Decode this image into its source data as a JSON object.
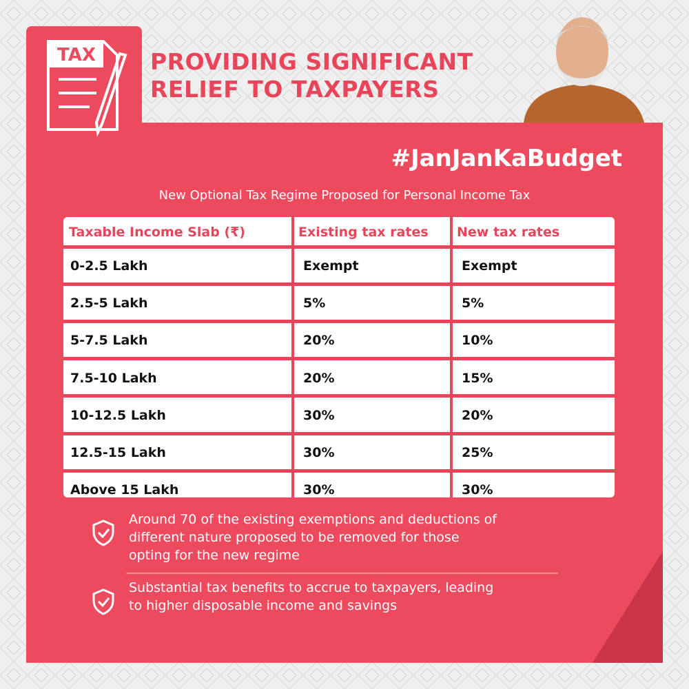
{
  "header": {
    "icon_label": "TAX",
    "title_lines": [
      "PROVIDING SIGNIFICANT",
      "RELIEF TO TAXPAYERS"
    ],
    "hashtag": "#JanJanKaBudget",
    "subtitle": "New Optional Tax Regime Proposed for Personal Income Tax"
  },
  "table": {
    "columns": [
      "Taxable Income Slab (₹)",
      "Existing tax rates",
      "New tax rates"
    ],
    "rows": [
      [
        "0-2.5 Lakh",
        "Exempt",
        "Exempt"
      ],
      [
        "2.5-5 Lakh",
        "5%",
        "5%"
      ],
      [
        "5-7.5 Lakh",
        "20%",
        "10%"
      ],
      [
        "7.5-10 Lakh",
        "20%",
        "15%"
      ],
      [
        "10-12.5 Lakh",
        "30%",
        "20%"
      ],
      [
        "12.5-15 Lakh",
        "30%",
        "25%"
      ],
      [
        "Above 15 Lakh",
        "30%",
        "30%"
      ]
    ]
  },
  "notes": [
    [
      "Around 70 of the existing exemptions and deductions of",
      "different nature proposed to be removed for those",
      "opting for the new regime"
    ],
    [
      "Substantial tax benefits to accrue to taxpayers, leading",
      "to higher disposable income and savings"
    ]
  ]
}
